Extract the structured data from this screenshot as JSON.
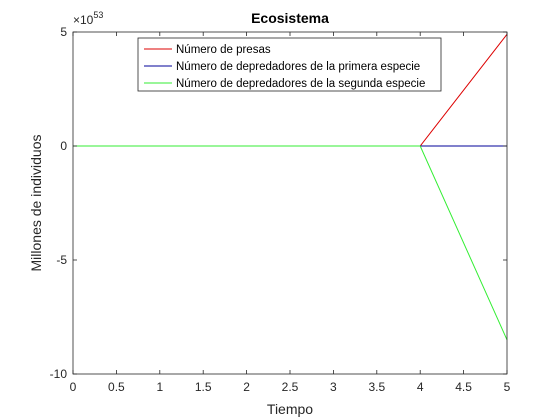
{
  "chart_data": {
    "type": "line",
    "title": "Ecosistema",
    "xlabel": "Tiempo",
    "ylabel": "Millones de individuos",
    "xlim": [
      0,
      5
    ],
    "ylim": [
      -10,
      5
    ],
    "y_exponent_base": "×10",
    "y_exponent": "53",
    "xticks": [
      "0",
      "0.5",
      "1",
      "1.5",
      "2",
      "2.5",
      "3",
      "3.5",
      "4",
      "4.5",
      "5"
    ],
    "yticks": [
      "5",
      "0",
      "-5",
      "-10"
    ],
    "grid": false,
    "legend_position": "top-center",
    "series": [
      {
        "name": "Número de presas",
        "color": "#dd0000",
        "x": [
          0,
          4,
          5
        ],
        "y": [
          0,
          0,
          4.9
        ]
      },
      {
        "name": "Número de depredadores de la primera especie",
        "color": "#000099",
        "x": [
          0,
          4,
          5
        ],
        "y": [
          0,
          0,
          0
        ]
      },
      {
        "name": "Número de depredadores de la segunda especie",
        "color": "#33ee33",
        "x": [
          0,
          4,
          5
        ],
        "y": [
          0,
          0,
          -8.5
        ]
      }
    ]
  }
}
